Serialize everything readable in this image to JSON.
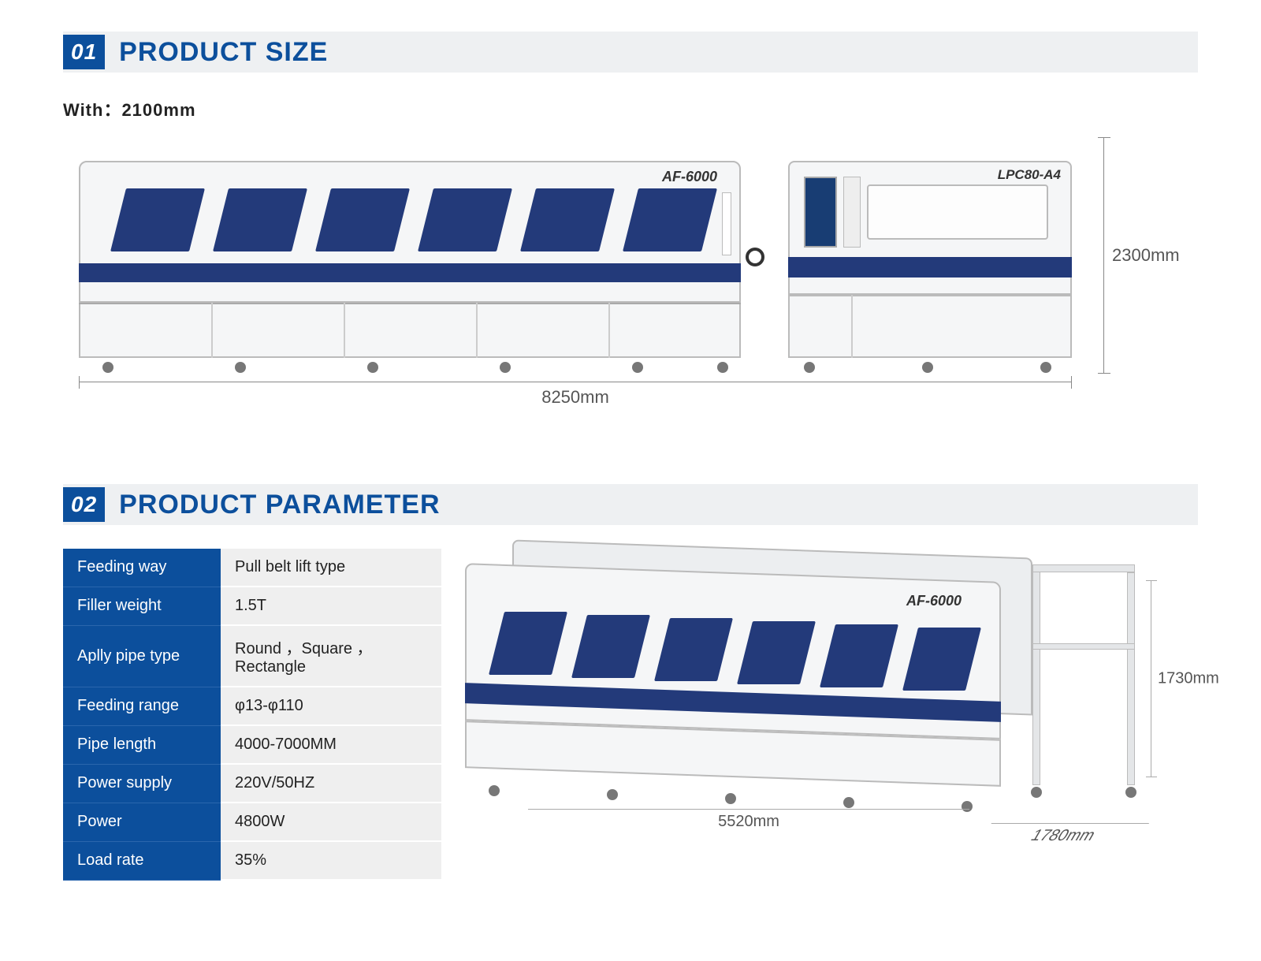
{
  "section1": {
    "num": "01",
    "title": "PRODUCT SIZE",
    "width_label": "With：2100mm",
    "machine_long_label": "AF-6000",
    "machine_small_label": "LPC80-A4",
    "dim_width": "8250mm",
    "dim_height": "2300mm",
    "colors": {
      "accent": "#0c4f9c",
      "machine_body": "#f5f6f7",
      "stripe": "#233a7a",
      "window": "#233a7a",
      "header_bg": "#eef0f2",
      "dim_line": "#888888"
    },
    "long_machine": {
      "windows": 6
    },
    "small_machine": {
      "panel_label": "LPC80-A4"
    }
  },
  "section2": {
    "num": "02",
    "title": "PRODUCT PARAMETER",
    "table": [
      {
        "k": "Feeding way",
        "v": "Pull belt lift type"
      },
      {
        "k": "Filler  weight",
        "v": "1.5T"
      },
      {
        "k": "Aplly pipe type",
        "v": "Round ，Square ， Rectangle"
      },
      {
        "k": "Feeding range",
        "v": "φ13-φ110"
      },
      {
        "k": "Pipe length",
        "v": "4000-7000MM"
      },
      {
        "k": "Power supply",
        "v": "220V/50HZ"
      },
      {
        "k": "Power",
        "v": "4800W"
      },
      {
        "k": "Load rate",
        "v": "35%"
      }
    ],
    "machine_label": "AF-6000",
    "dim_length": "5520mm",
    "dim_depth": "1780mm",
    "dim_height": "1730mm",
    "iso_machine": {
      "windows": 6
    },
    "colors": {
      "table_key_bg": "#0c4f9c",
      "table_val_bg": "#efefef",
      "stripe": "#233a7a"
    }
  }
}
